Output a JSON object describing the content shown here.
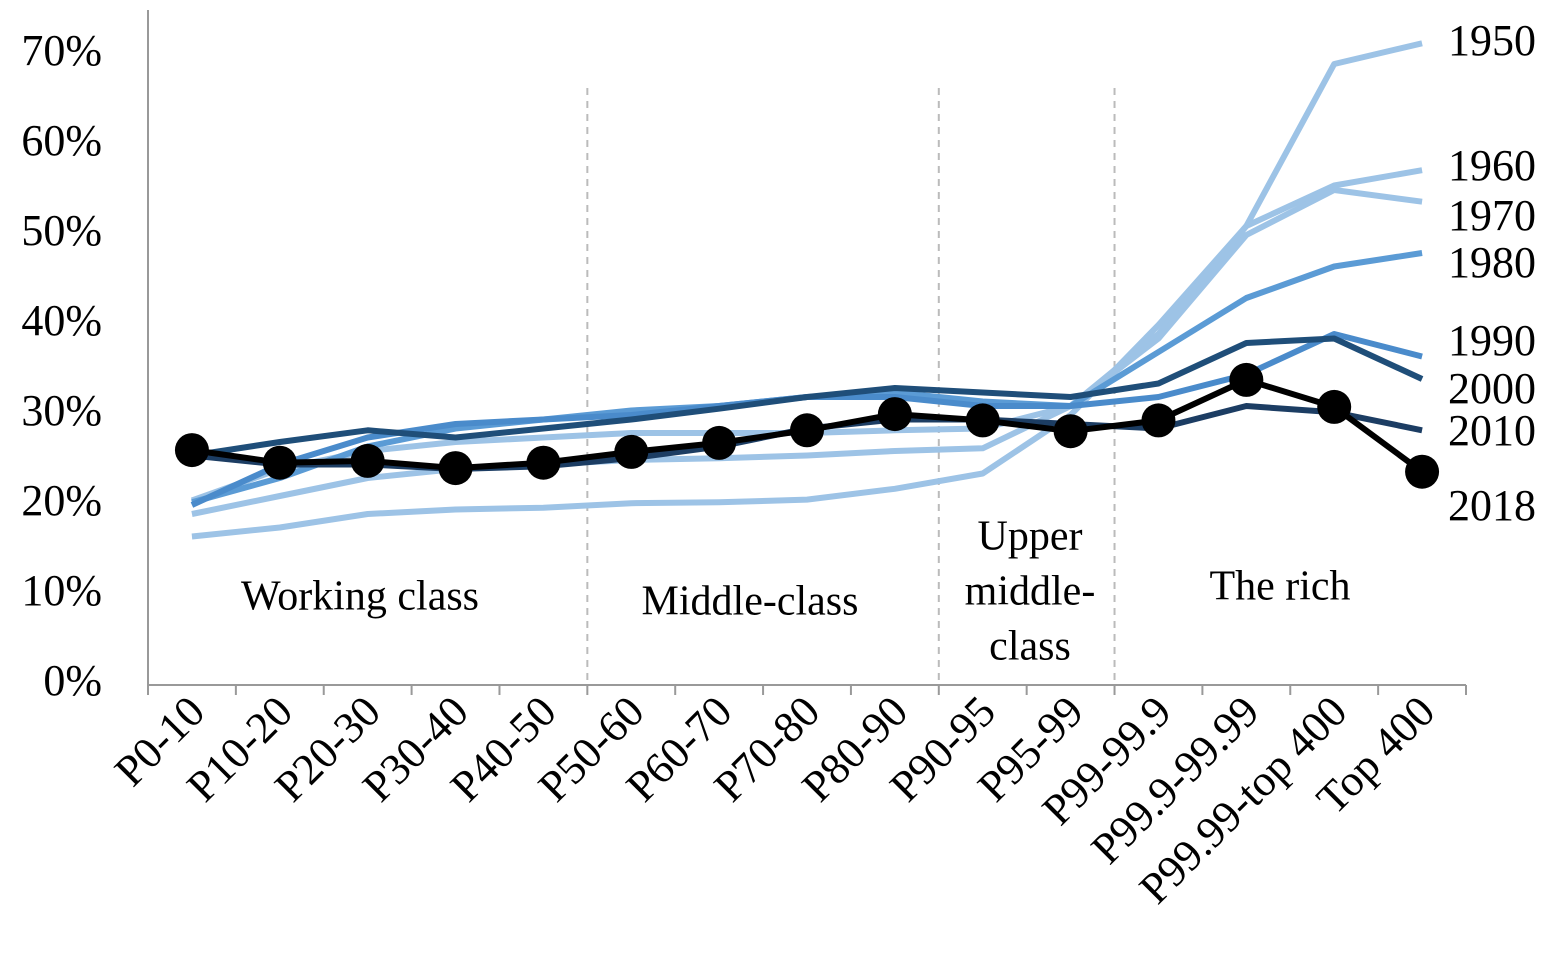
{
  "chart_data": {
    "type": "line",
    "categories": [
      "P0-10",
      "P10-20",
      "P20-30",
      "P30-40",
      "P40-50",
      "P50-60",
      "P60-70",
      "P70-80",
      "P80-90",
      "P90-95",
      "P95-99",
      "P99-99.9",
      "P99.9-99.99",
      "P99.99-top 400",
      "Top 400"
    ],
    "ylim": [
      0,
      75
    ],
    "yticks": [
      {
        "value": 0,
        "label": "0%"
      },
      {
        "value": 10,
        "label": "10%"
      },
      {
        "value": 20,
        "label": "20%"
      },
      {
        "value": 30,
        "label": "30%"
      },
      {
        "value": 40,
        "label": "40%"
      },
      {
        "value": 50,
        "label": "50%"
      },
      {
        "value": 60,
        "label": "60%"
      },
      {
        "value": 70,
        "label": "70%"
      }
    ],
    "annotations": [
      {
        "text": [
          "Working class"
        ]
      },
      {
        "text": [
          "Middle-class"
        ]
      },
      {
        "text": [
          "Upper",
          "middle-",
          "class"
        ]
      },
      {
        "text": [
          "The rich"
        ]
      }
    ],
    "series": [
      {
        "name": "1950",
        "color": "#9dc3e6",
        "values": [
          16.5,
          17.5,
          19,
          19.5,
          19.7,
          20.2,
          20.3,
          20.6,
          21.8,
          23.5,
          30,
          40,
          51,
          69,
          71.3
        ]
      },
      {
        "name": "1960",
        "color": "#9dc3e6",
        "values": [
          19,
          21,
          23,
          24,
          24.5,
          25,
          25.2,
          25.5,
          26,
          26.3,
          31,
          39,
          51,
          55.5,
          57.2
        ]
      },
      {
        "name": "1970",
        "color": "#9dc3e6",
        "values": [
          20.5,
          24,
          26,
          27,
          27.5,
          28,
          28,
          28,
          28.3,
          28.5,
          31,
          38.5,
          50,
          55,
          53.7
        ]
      },
      {
        "name": "1980",
        "color": "#5b9bd5",
        "values": [
          20.3,
          23,
          26.5,
          28.5,
          29.5,
          30.5,
          31,
          32,
          32.5,
          31.5,
          31,
          37,
          43,
          46.5,
          48
        ]
      },
      {
        "name": "1990",
        "color": "#4a8bcb",
        "values": [
          20,
          24.5,
          27.5,
          29,
          29.5,
          30,
          31,
          32,
          32,
          31,
          31,
          32,
          34.5,
          39,
          36.5
        ]
      },
      {
        "name": "2000",
        "color": "#1f4e79",
        "values": [
          25.5,
          27,
          28.3,
          27.5,
          28.5,
          29.5,
          30.7,
          32,
          33,
          32.5,
          32,
          33.5,
          38,
          38.5,
          34
        ]
      },
      {
        "name": "2010",
        "color": "#1c3d63",
        "values": [
          25.5,
          24.5,
          24.5,
          24,
          24.3,
          25.2,
          26.5,
          28.5,
          29.5,
          29.5,
          29,
          28.5,
          31,
          30.3,
          28.3
        ]
      },
      {
        "name": "2018",
        "color": "#000000",
        "markers": true,
        "values": [
          26.1,
          24.7,
          24.9,
          24.1,
          24.7,
          25.9,
          26.9,
          28.3,
          30.1,
          29.4,
          28.2,
          29.4,
          33.9,
          30.9,
          23.7
        ]
      }
    ]
  }
}
